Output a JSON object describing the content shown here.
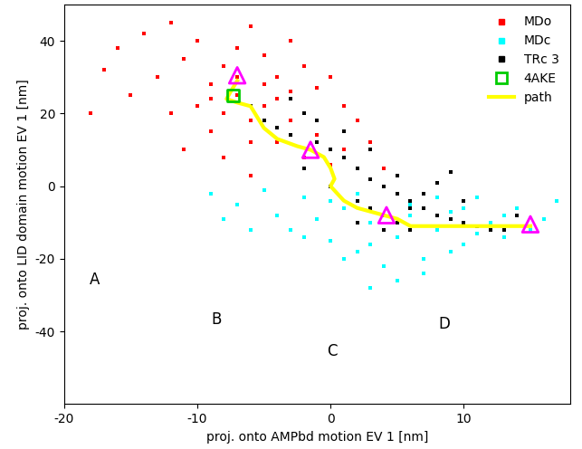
{
  "chart_data": {
    "type": "scatter",
    "xlabel": "proj. onto AMPbd motion EV 1 [nm]",
    "ylabel": "proj. onto LID domain motion EV 1 [nm]",
    "xlim": [
      -20,
      18
    ],
    "ylim": [
      -60,
      50
    ],
    "xticks": [
      -20,
      -10,
      0,
      10
    ],
    "yticks": [
      -40,
      -20,
      0,
      20,
      40
    ],
    "grid": false,
    "legend": "upper right",
    "annotations": [
      "A",
      "B",
      "C",
      "D"
    ],
    "series": [
      {
        "name": "MDo",
        "type": "scatter",
        "color": "#ff0000",
        "marker": "square",
        "x": [
          -16,
          -14,
          -12,
          -10,
          -13,
          -11,
          -9,
          -8,
          -7,
          -6,
          -5,
          -4,
          -3,
          -2,
          -1,
          0,
          1,
          2,
          3,
          -15,
          -12,
          -10,
          -9,
          -8,
          -7,
          -6,
          -5,
          -4,
          -3,
          -2,
          -1,
          0,
          -11,
          -8,
          -6,
          -17,
          -18,
          -5,
          -7,
          -9,
          -4,
          -3,
          -6,
          1,
          4
        ],
        "values": [
          38,
          42,
          45,
          40,
          30,
          35,
          28,
          33,
          38,
          44,
          36,
          30,
          40,
          33,
          27,
          30,
          22,
          18,
          12,
          25,
          20,
          22,
          15,
          20,
          25,
          18,
          22,
          12,
          18,
          8,
          14,
          6,
          10,
          8,
          3,
          32,
          20,
          28,
          30,
          24,
          24,
          26,
          12,
          10,
          5
        ]
      },
      {
        "name": "MDc",
        "type": "scatter",
        "color": "#00ffff",
        "marker": "square",
        "x": [
          -9,
          -7,
          -5,
          -4,
          -3,
          -2,
          -1,
          0,
          1,
          2,
          3,
          4,
          5,
          6,
          7,
          8,
          9,
          10,
          11,
          12,
          13,
          14,
          15,
          16,
          17,
          5,
          3,
          7,
          2,
          0,
          -2,
          4,
          6,
          9,
          11,
          13,
          -6,
          -8,
          1,
          3,
          8,
          10
        ],
        "values": [
          -2,
          -5,
          -1,
          -8,
          -12,
          -3,
          -9,
          -15,
          -6,
          -18,
          -10,
          -22,
          -14,
          -5,
          -20,
          -12,
          -7,
          -16,
          -3,
          -10,
          -14,
          -6,
          -12,
          -9,
          -4,
          -26,
          -28,
          -24,
          -2,
          -4,
          -14,
          0,
          -8,
          -18,
          -13,
          -8,
          -12,
          -9,
          -20,
          -16,
          -3,
          -6
        ]
      },
      {
        "name": "TRc 3",
        "type": "scatter",
        "color": "#000000",
        "marker": "square",
        "x": [
          -6,
          -5,
          -4,
          -3,
          -2,
          -1,
          0,
          1,
          2,
          3,
          4,
          5,
          6,
          7,
          8,
          9,
          10,
          11,
          12,
          13,
          14,
          2,
          3,
          4,
          5,
          6,
          7,
          8,
          9,
          3,
          1,
          -1,
          -3,
          5,
          6,
          4,
          2,
          0,
          -2,
          10
        ],
        "values": [
          22,
          18,
          16,
          14,
          20,
          12,
          10,
          8,
          5,
          2,
          0,
          -2,
          -4,
          -6,
          -8,
          -9,
          -10,
          -11,
          -12,
          -12,
          -8,
          -4,
          -6,
          -8,
          -10,
          -6,
          -2,
          1,
          4,
          10,
          15,
          18,
          24,
          3,
          -12,
          -12,
          -10,
          0,
          5,
          -4
        ]
      },
      {
        "name": "4AKE",
        "type": "scatter",
        "color": "#00cc00",
        "marker": "open_square",
        "x": [
          -7.3
        ],
        "values": [
          25
        ]
      },
      {
        "name": "path",
        "type": "line",
        "color": "#ffff00",
        "x": [
          -7,
          -7.5,
          -7.8,
          -7,
          -6,
          -5.5,
          -5,
          -4,
          -2.5,
          -1.5,
          -0.5,
          0,
          0.3,
          0,
          0.5,
          1,
          2,
          3,
          4,
          5,
          6,
          8,
          10,
          12,
          14,
          15
        ],
        "values": [
          29,
          26,
          24,
          23,
          22,
          19,
          16,
          13,
          11,
          10,
          8,
          5,
          2,
          0,
          -2,
          -4,
          -6,
          -7,
          -8,
          -9,
          -11,
          -11,
          -11,
          -11,
          -11,
          -11
        ]
      },
      {
        "type": "scatter",
        "color": "#ff00ff",
        "marker": "triangle",
        "x": [
          -7,
          -1.5,
          4.2,
          15
        ],
        "values": [
          30.5,
          10,
          -8,
          -10.5
        ]
      }
    ]
  }
}
